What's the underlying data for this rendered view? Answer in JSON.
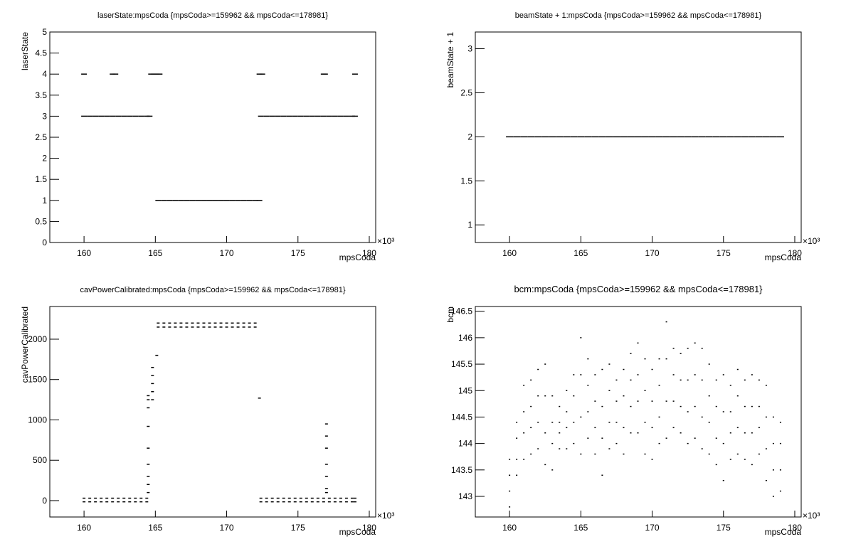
{
  "chart_data": [
    {
      "type": "scatter",
      "title": "laserState:mpsCoda {mpsCoda>=159962 && mpsCoda<=178981}",
      "xlabel": "mpsCoda",
      "ylabel": "laserState",
      "x_multiplier": "×10³",
      "color": "#000000",
      "xlim": [
        157.6,
        180.45
      ],
      "xticks": [
        160,
        165,
        170,
        175,
        180
      ],
      "ylim": [
        0,
        5
      ],
      "yticks": [
        0,
        0.5,
        1,
        1.5,
        2,
        2.5,
        3,
        3.5,
        4,
        4.5,
        5
      ],
      "x": [
        160,
        160.4,
        160.8,
        161.2,
        161.6,
        162,
        162.4,
        162.8,
        163.2,
        163.6,
        164,
        164.4,
        164.6,
        160,
        162,
        162.2,
        164.7,
        164.9,
        165.1,
        165.3,
        165.2,
        165.6,
        166,
        166.4,
        166.8,
        167.2,
        167.6,
        168,
        168.4,
        168.8,
        169.2,
        169.6,
        170,
        170.4,
        170.8,
        171.2,
        171.6,
        172,
        172.3,
        172.3,
        172.5,
        172.4,
        172.8,
        173.2,
        173.6,
        174,
        174.4,
        174.8,
        175.2,
        175.6,
        176,
        176.4,
        176.8,
        177.2,
        177.6,
        178,
        178.4,
        178.8,
        179,
        176.8,
        176.9,
        179
      ],
      "values": [
        3,
        3,
        3,
        3,
        3,
        3,
        3,
        3,
        3,
        3,
        3,
        3,
        3,
        4,
        4,
        4,
        4,
        4,
        4,
        4,
        1,
        1,
        1,
        1,
        1,
        1,
        1,
        1,
        1,
        1,
        1,
        1,
        1,
        1,
        1,
        1,
        1,
        1,
        1,
        4,
        4,
        3,
        3,
        3,
        3,
        3,
        3,
        3,
        3,
        3,
        3,
        3,
        3,
        3,
        3,
        3,
        3,
        3,
        3,
        4,
        4,
        4
      ]
    },
    {
      "type": "scatter",
      "title": "beamState + 1:mpsCoda {mpsCoda>=159962 && mpsCoda<=178981}",
      "xlabel": "mpsCoda",
      "ylabel": "beamState + 1",
      "x_multiplier": "×10³",
      "color": "#000000",
      "xlim": [
        157.6,
        180.45
      ],
      "xticks": [
        160,
        165,
        170,
        175,
        180
      ],
      "ylim": [
        0.8,
        3.19
      ],
      "yticks": [
        1,
        1.5,
        2,
        2.5,
        3
      ],
      "x": [
        160,
        160.5,
        161,
        161.5,
        162,
        162.5,
        163,
        163.5,
        164,
        164.5,
        165,
        165.5,
        166,
        166.5,
        167,
        167.5,
        168,
        168.5,
        169,
        169.5,
        170,
        170.5,
        171,
        171.5,
        172,
        172.5,
        173,
        173.5,
        174,
        174.5,
        175,
        175.5,
        176,
        176.5,
        177,
        177.5,
        178,
        178.5,
        179
      ],
      "values": [
        2,
        2,
        2,
        2,
        2,
        2,
        2,
        2,
        2,
        2,
        2,
        2,
        2,
        2,
        2,
        2,
        2,
        2,
        2,
        2,
        2,
        2,
        2,
        2,
        2,
        2,
        2,
        2,
        2,
        2,
        2,
        2,
        2,
        2,
        2,
        2,
        2,
        2,
        2
      ]
    },
    {
      "type": "scatter",
      "title": "cavPowerCalibrated:mpsCoda {mpsCoda>=159962 && mpsCoda<=178981}",
      "xlabel": "mpsCoda",
      "ylabel": "cavPowerCalibrated",
      "x_multiplier": "×10³",
      "color": "#000000",
      "xlim": [
        157.6,
        180.45
      ],
      "xticks": [
        160,
        165,
        170,
        175,
        180
      ],
      "ylim": [
        -203,
        2405
      ],
      "yticks": [
        0,
        500,
        1000,
        1500,
        2000
      ],
      "x": [
        160,
        160,
        160.4,
        160.4,
        160.8,
        160.8,
        161.2,
        161.2,
        161.6,
        161.6,
        162,
        162,
        162.4,
        162.4,
        162.8,
        162.8,
        163.2,
        163.2,
        163.6,
        163.6,
        164,
        164,
        164.4,
        164.4,
        164.5,
        164.5,
        164.5,
        164.5,
        164.5,
        164.5,
        164.5,
        164.5,
        164.5,
        164.8,
        164.8,
        164.8,
        164.8,
        164.8,
        165.1,
        165.2,
        165.2,
        165.6,
        165.6,
        166,
        166,
        166.4,
        166.4,
        166.8,
        166.8,
        167.2,
        167.2,
        167.6,
        167.6,
        168,
        168,
        168.4,
        168.4,
        168.8,
        168.8,
        169.2,
        169.2,
        169.6,
        169.6,
        170,
        170,
        170.4,
        170.4,
        170.8,
        170.8,
        171.2,
        171.2,
        171.6,
        171.6,
        172,
        172,
        172.3,
        172.4,
        172.4,
        172.8,
        172.8,
        173.2,
        173.2,
        173.6,
        173.6,
        174,
        174,
        174.4,
        174.4,
        174.8,
        174.8,
        175.2,
        175.2,
        175.6,
        175.6,
        176,
        176,
        176.4,
        176.4,
        176.8,
        176.8,
        177.2,
        177.2,
        177.6,
        177.6,
        178,
        178,
        178.4,
        178.4,
        178.8,
        178.8,
        179,
        179,
        177,
        177,
        177,
        177,
        177,
        177,
        177
      ],
      "values": [
        -15,
        30,
        -15,
        30,
        -15,
        30,
        -15,
        30,
        -15,
        30,
        -15,
        30,
        -15,
        30,
        -15,
        30,
        -15,
        30,
        -15,
        30,
        -15,
        30,
        -15,
        30,
        100,
        200,
        300,
        450,
        650,
        920,
        1150,
        1250,
        1300,
        1250,
        1350,
        1450,
        1550,
        1650,
        1800,
        2150,
        2200,
        2150,
        2200,
        2150,
        2200,
        2150,
        2200,
        2150,
        2200,
        2150,
        2200,
        2150,
        2200,
        2150,
        2200,
        2150,
        2200,
        2150,
        2200,
        2150,
        2200,
        2150,
        2200,
        2150,
        2200,
        2150,
        2200,
        2150,
        2200,
        2150,
        2200,
        2150,
        2200,
        2150,
        2200,
        1270,
        -15,
        30,
        -15,
        30,
        -15,
        30,
        -15,
        30,
        -15,
        30,
        -15,
        30,
        -15,
        30,
        -15,
        30,
        -15,
        30,
        -15,
        30,
        -15,
        30,
        -15,
        30,
        -15,
        30,
        -15,
        30,
        -15,
        30,
        -15,
        30,
        -15,
        30,
        -15,
        30,
        100,
        150,
        300,
        450,
        650,
        800,
        950
      ]
    },
    {
      "type": "scatter",
      "title": "bcm:mpsCoda {mpsCoda>=159962 && mpsCoda<=178981}",
      "xlabel": "mpsCoda",
      "ylabel": "bcm",
      "x_multiplier": "×10³",
      "color": "#000000",
      "xlim": [
        157.6,
        180.45
      ],
      "xticks": [
        160,
        165,
        170,
        175,
        180
      ],
      "ylim": [
        142.61,
        146.59
      ],
      "yticks": [
        143,
        143.5,
        144,
        144.5,
        145,
        145.5,
        146,
        146.5
      ],
      "x": [
        160,
        160,
        160,
        160,
        160.5,
        160.5,
        160.5,
        160.5,
        161,
        161,
        161,
        161,
        161.5,
        161.5,
        161.5,
        161.5,
        162,
        162,
        162,
        162,
        162.5,
        162.5,
        162.5,
        162.5,
        163,
        163,
        163,
        163,
        163.5,
        163.5,
        163.5,
        163.5,
        164,
        164,
        164,
        164,
        164.5,
        164.5,
        164.5,
        164.5,
        165,
        165,
        165,
        165,
        165.5,
        165.5,
        165.5,
        165.5,
        166,
        166,
        166,
        166,
        166.5,
        166.5,
        166.5,
        166.5,
        167,
        167,
        167,
        167,
        167.5,
        167.5,
        167.5,
        167.5,
        168,
        168,
        168,
        168,
        168.5,
        168.5,
        168.5,
        168.5,
        169,
        169,
        169,
        169,
        169.5,
        169.5,
        169.5,
        169.5,
        170,
        170,
        170,
        170,
        170.5,
        170.5,
        170.5,
        170.5,
        171,
        171,
        171,
        171,
        171.5,
        171.5,
        171.5,
        171.5,
        172,
        172,
        172,
        172,
        172.5,
        172.5,
        172.5,
        172.5,
        173,
        173,
        173,
        173,
        173.5,
        173.5,
        173.5,
        173.5,
        174,
        174,
        174,
        174,
        174.5,
        174.5,
        174.5,
        174.5,
        175,
        175,
        175,
        175,
        175.5,
        175.5,
        175.5,
        175.5,
        176,
        176,
        176,
        176,
        176.5,
        176.5,
        176.5,
        176.5,
        177,
        177,
        177,
        177,
        177.5,
        177.5,
        177.5,
        177.5,
        178,
        178,
        178,
        178,
        178.5,
        178.5,
        178.5,
        178.5,
        179,
        179,
        179,
        179
      ],
      "values": [
        142.8,
        143.1,
        143.4,
        143.7,
        143.4,
        143.7,
        144.1,
        144.4,
        143.7,
        144.2,
        144.6,
        145.1,
        143.8,
        144.3,
        144.7,
        145.2,
        143.9,
        144.4,
        144.9,
        145.4,
        143.6,
        144.2,
        144.9,
        145.5,
        143.5,
        144,
        144.4,
        144.9,
        143.9,
        144.2,
        144.4,
        144.7,
        143.9,
        144.3,
        144.6,
        145,
        144,
        144.4,
        144.9,
        145.3,
        143.8,
        144.5,
        145.3,
        146,
        144.1,
        144.6,
        145.1,
        145.6,
        143.8,
        144.3,
        144.8,
        145.3,
        143.4,
        144.1,
        144.7,
        145.4,
        143.9,
        144.4,
        145,
        145.5,
        144,
        144.4,
        144.8,
        145.2,
        143.8,
        144.3,
        144.9,
        145.4,
        144.2,
        144.7,
        145.2,
        145.7,
        144.2,
        144.8,
        145.3,
        145.9,
        143.8,
        144.4,
        145,
        145.6,
        143.7,
        144.3,
        144.8,
        145.4,
        144,
        144.5,
        145.1,
        145.6,
        144.1,
        144.8,
        145.6,
        146.3,
        144.3,
        144.8,
        145.3,
        145.8,
        144.2,
        144.7,
        145.2,
        145.7,
        144,
        144.6,
        145.2,
        145.8,
        144.1,
        144.7,
        145.3,
        145.9,
        143.9,
        144.5,
        145.2,
        145.8,
        143.8,
        144.4,
        144.9,
        145.5,
        143.6,
        144.1,
        144.7,
        145.2,
        143.3,
        144,
        144.6,
        145.3,
        143.7,
        144.2,
        144.6,
        145.1,
        143.8,
        144.3,
        144.9,
        145.4,
        143.7,
        144.2,
        144.7,
        145.2,
        143.6,
        144.2,
        144.7,
        145.3,
        143.8,
        144.3,
        144.7,
        145.2,
        143.3,
        143.9,
        144.5,
        145.1,
        143,
        143.5,
        144,
        144.5,
        143.1,
        143.5,
        144,
        144.4
      ]
    }
  ]
}
